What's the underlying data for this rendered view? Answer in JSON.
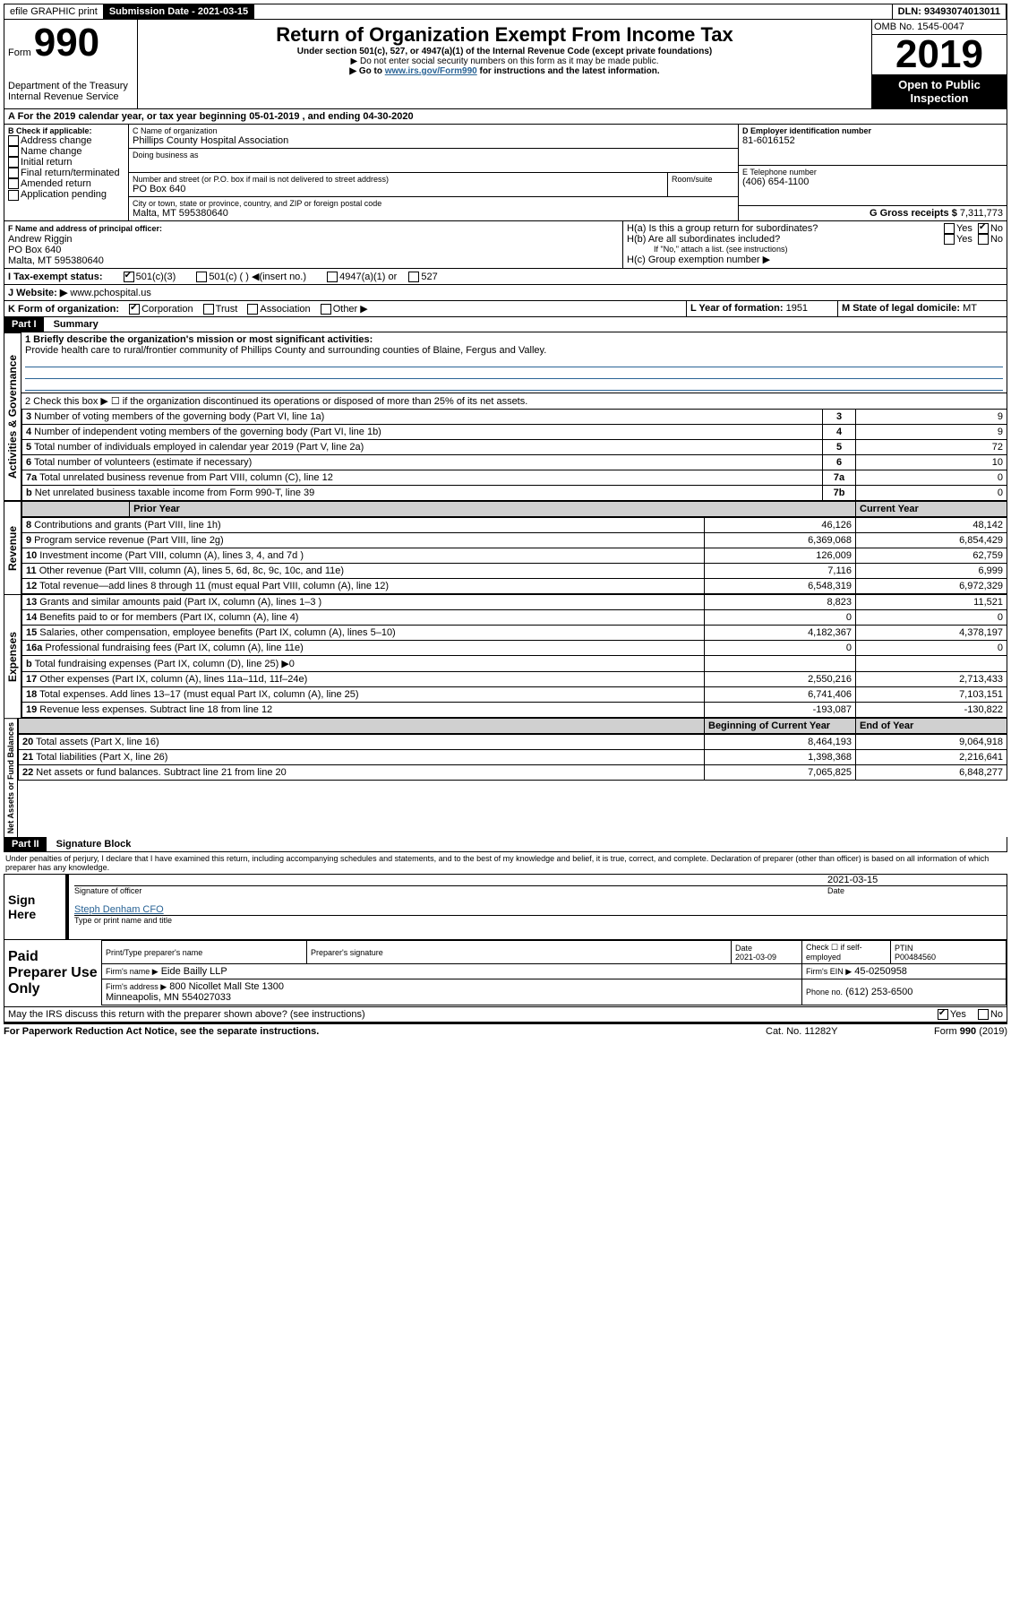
{
  "topbar": {
    "efile": "efile GRAPHIC print",
    "submission_label": "Submission Date - 2021-03-15",
    "dln": "DLN: 93493074013011"
  },
  "header": {
    "form": "Form",
    "form_no": "990",
    "dept": "Department of the Treasury\nInternal Revenue Service",
    "title": "Return of Organization Exempt From Income Tax",
    "sub1": "Under section 501(c), 527, or 4947(a)(1) of the Internal Revenue Code (except private foundations)",
    "sub2": "▶ Do not enter social security numbers on this form as it may be made public.",
    "sub3": "▶ Go to www.irs.gov/Form990 for instructions and the latest information.",
    "omb": "OMB No. 1545-0047",
    "year": "2019",
    "open": "Open to Public\nInspection"
  },
  "periodA": {
    "text": "A For the 2019 calendar year, or tax year beginning 05-01-2019     , and ending 04-30-2020"
  },
  "boxB": {
    "title": "B Check if applicable:",
    "items": [
      "Address change",
      "Name change",
      "Initial return",
      "Final return/terminated",
      "Amended return",
      "Application pending"
    ]
  },
  "boxC": {
    "name_label": "C Name of organization",
    "name": "Phillips County Hospital Association",
    "dba_label": "Doing business as",
    "street_label": "Number and street (or P.O. box if mail is not delivered to street address)",
    "room_label": "Room/suite",
    "street": "PO Box 640",
    "city_label": "City or town, state or province, country, and ZIP or foreign postal code",
    "city": "Malta, MT 595380640"
  },
  "boxD": {
    "label": "D Employer identification number",
    "value": "81-6016152"
  },
  "boxE": {
    "label": "E Telephone number",
    "value": "(406) 654-1100"
  },
  "boxG": {
    "label": "G Gross receipts $",
    "value": "7,311,773"
  },
  "boxF": {
    "label": "F Name and address of principal officer:",
    "name": "Andrew Riggin",
    "addr1": "PO Box 640",
    "addr2": "Malta, MT 595380640"
  },
  "boxH": {
    "ha": "H(a)  Is this a group return for subordinates?",
    "hb": "H(b)  Are all subordinates included?",
    "hb_note": "If \"No,\" attach a list. (see instructions)",
    "hc": "H(c)  Group exemption number ▶"
  },
  "boxI": {
    "label": "I Tax-exempt status:",
    "opts": [
      "501(c)(3)",
      "501(c) (   ) ◀(insert no.)",
      "4947(a)(1) or",
      "527"
    ]
  },
  "boxJ": {
    "label": "J Website: ▶",
    "value": "www.pchospital.us"
  },
  "boxK": {
    "label": "K Form of organization:",
    "opts": [
      "Corporation",
      "Trust",
      "Association",
      "Other ▶"
    ]
  },
  "boxL": {
    "label": "L Year of formation:",
    "value": "1951"
  },
  "boxM": {
    "label": "M State of legal domicile:",
    "value": "MT"
  },
  "part1": {
    "header": "Part I",
    "title": "Summary",
    "line1_label": "1  Briefly describe the organization's mission or most significant activities:",
    "line1_text": "Provide health care to rural/frontier community of Phillips County and surrounding counties of Blaine, Fergus and Valley.",
    "line2": "2  Check this box ▶ ☐ if the organization discontinued its operations or disposed of more than 25% of its net assets.",
    "sections": {
      "gov": "Activities & Governance",
      "rev": "Revenue",
      "exp": "Expenses",
      "net": "Net Assets or Fund Balances"
    },
    "col_prior": "Prior Year",
    "col_current": "Current Year",
    "col_begin": "Beginning of Current Year",
    "col_end": "End of Year",
    "rows_gov": [
      {
        "n": "3",
        "t": "Number of voting members of the governing body (Part VI, line 1a)",
        "l": "3",
        "v": "9"
      },
      {
        "n": "4",
        "t": "Number of independent voting members of the governing body (Part VI, line 1b)",
        "l": "4",
        "v": "9"
      },
      {
        "n": "5",
        "t": "Total number of individuals employed in calendar year 2019 (Part V, line 2a)",
        "l": "5",
        "v": "72"
      },
      {
        "n": "6",
        "t": "Total number of volunteers (estimate if necessary)",
        "l": "6",
        "v": "10"
      },
      {
        "n": "7a",
        "t": "Total unrelated business revenue from Part VIII, column (C), line 12",
        "l": "7a",
        "v": "0"
      },
      {
        "n": "b",
        "t": "Net unrelated business taxable income from Form 990-T, line 39",
        "l": "7b",
        "v": "0"
      }
    ],
    "rows_rev": [
      {
        "n": "8",
        "t": "Contributions and grants (Part VIII, line 1h)",
        "p": "46,126",
        "c": "48,142"
      },
      {
        "n": "9",
        "t": "Program service revenue (Part VIII, line 2g)",
        "p": "6,369,068",
        "c": "6,854,429"
      },
      {
        "n": "10",
        "t": "Investment income (Part VIII, column (A), lines 3, 4, and 7d )",
        "p": "126,009",
        "c": "62,759"
      },
      {
        "n": "11",
        "t": "Other revenue (Part VIII, column (A), lines 5, 6d, 8c, 9c, 10c, and 11e)",
        "p": "7,116",
        "c": "6,999"
      },
      {
        "n": "12",
        "t": "Total revenue—add lines 8 through 11 (must equal Part VIII, column (A), line 12)",
        "p": "6,548,319",
        "c": "6,972,329"
      }
    ],
    "rows_exp": [
      {
        "n": "13",
        "t": "Grants and similar amounts paid (Part IX, column (A), lines 1–3 )",
        "p": "8,823",
        "c": "11,521"
      },
      {
        "n": "14",
        "t": "Benefits paid to or for members (Part IX, column (A), line 4)",
        "p": "0",
        "c": "0"
      },
      {
        "n": "15",
        "t": "Salaries, other compensation, employee benefits (Part IX, column (A), lines 5–10)",
        "p": "4,182,367",
        "c": "4,378,197"
      },
      {
        "n": "16a",
        "t": "Professional fundraising fees (Part IX, column (A), line 11e)",
        "p": "0",
        "c": "0"
      },
      {
        "n": "b",
        "t": "Total fundraising expenses (Part IX, column (D), line 25) ▶0",
        "p": "",
        "c": "",
        "shaded": true
      },
      {
        "n": "17",
        "t": "Other expenses (Part IX, column (A), lines 11a–11d, 11f–24e)",
        "p": "2,550,216",
        "c": "2,713,433"
      },
      {
        "n": "18",
        "t": "Total expenses. Add lines 13–17 (must equal Part IX, column (A), line 25)",
        "p": "6,741,406",
        "c": "7,103,151"
      },
      {
        "n": "19",
        "t": "Revenue less expenses. Subtract line 18 from line 12",
        "p": "-193,087",
        "c": "-130,822"
      }
    ],
    "rows_net": [
      {
        "n": "20",
        "t": "Total assets (Part X, line 16)",
        "p": "8,464,193",
        "c": "9,064,918"
      },
      {
        "n": "21",
        "t": "Total liabilities (Part X, line 26)",
        "p": "1,398,368",
        "c": "2,216,641"
      },
      {
        "n": "22",
        "t": "Net assets or fund balances. Subtract line 21 from line 20",
        "p": "7,065,825",
        "c": "6,848,277"
      }
    ]
  },
  "part2": {
    "header": "Part II",
    "title": "Signature Block",
    "perjury": "Under penalties of perjury, I declare that I have examined this return, including accompanying schedules and statements, and to the best of my knowledge and belief, it is true, correct, and complete. Declaration of preparer (other than officer) is based on all information of which preparer has any knowledge.",
    "sign_here": "Sign Here",
    "sig_date": "2021-03-15",
    "sig_officer": "Signature of officer",
    "date_label": "Date",
    "officer_name": "Steph Denham CFO",
    "type_name": "Type or print name and title",
    "paid": "Paid Preparer Use Only",
    "prep_name_label": "Print/Type preparer's name",
    "prep_sig_label": "Preparer's signature",
    "prep_date": "2021-03-09",
    "self_emp": "Check ☐ if self-employed",
    "ptin_label": "PTIN",
    "ptin": "P00484560",
    "firm_name_label": "Firm's name    ▶",
    "firm_name": "Eide Bailly LLP",
    "firm_ein_label": "Firm's EIN ▶",
    "firm_ein": "45-0250958",
    "firm_addr_label": "Firm's address ▶",
    "firm_addr": "800 Nicollet Mall Ste 1300\nMinneapolis, MN 554027033",
    "phone_label": "Phone no.",
    "phone": "(612) 253-6500",
    "discuss": "May the IRS discuss this return with the preparer shown above? (see instructions)",
    "yes": "Yes",
    "no": "No"
  },
  "footer": {
    "paperwork": "For Paperwork Reduction Act Notice, see the separate instructions.",
    "cat": "Cat. No. 11282Y",
    "form": "Form 990 (2019)"
  }
}
